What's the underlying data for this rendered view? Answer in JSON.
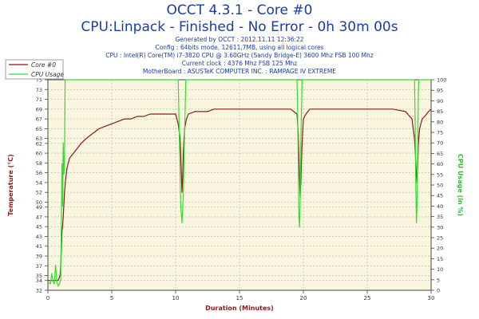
{
  "header": {
    "title": "OCCT 4.3.1 - Core #0",
    "subtitle": "CPU:Linpack - Finished - No Error - 0h 30m 00s",
    "info_lines": [
      "Generated by OCCT : 2012.11.11 12:36:22",
      "Config : 64bits mode, 12611,7MB, using all logical cores",
      "CPU : Intel(R) Core(TM) i7-3820 CPU @ 3.60GHz (Sandy Bridge-E) 3600 Mhz FSB 100 Mhz",
      "Current clock : 4376 Mhz FSB 125 Mhz",
      "MotherBoard : ASUSTeK COMPUTER INC. : RAMPAGE IV EXTREME"
    ]
  },
  "colors": {
    "temperature": "#8b1a1a",
    "cpu_usage": "#33dd33",
    "plot_bg": "#faf5df",
    "grid": "#b4b4b4",
    "left_axis_title": "#8b1a1a",
    "right_axis_title": "#33bb33",
    "x_axis_title": "#8b1a1a"
  },
  "chart_data": {
    "type": "line",
    "title": "OCCT 4.3.1 - Core #0",
    "xlabel": "Duration (Minutes)",
    "ylabel": "Temperature (°C)",
    "y2label": "CPU Usage (in %)",
    "xlim": [
      0,
      30
    ],
    "ylim": [
      32,
      75
    ],
    "y2lim": [
      0,
      100
    ],
    "x_ticks": [
      0,
      5,
      10,
      15,
      20,
      25,
      30
    ],
    "y_ticks": [
      32,
      34,
      35,
      37,
      39,
      41,
      43,
      45,
      47,
      49,
      50,
      52,
      54,
      56,
      58,
      60,
      62,
      63,
      65,
      67,
      69,
      71,
      73,
      75
    ],
    "y2_ticks": [
      0,
      5,
      10,
      15,
      20,
      25,
      30,
      35,
      40,
      45,
      50,
      55,
      60,
      65,
      70,
      75,
      80,
      85,
      90,
      95,
      100
    ],
    "grid": true,
    "legend_position": "top-left",
    "series": [
      {
        "name": "Core #0",
        "axis": "left",
        "x": [
          0,
          0.3,
          0.6,
          0.8,
          0.95,
          1.0,
          1.05,
          1.1,
          1.15,
          1.2,
          1.3,
          1.4,
          1.5,
          1.7,
          2.0,
          2.3,
          2.6,
          3.0,
          3.5,
          4.0,
          4.5,
          5.0,
          5.5,
          6.0,
          6.5,
          7.0,
          7.5,
          8.0,
          8.5,
          9.0,
          9.5,
          10.0,
          10.2,
          10.35,
          10.45,
          10.5,
          10.55,
          10.6,
          10.7,
          10.85,
          11.0,
          11.5,
          12.0,
          12.5,
          13.0,
          14.0,
          15.0,
          16.0,
          17.0,
          18.0,
          19.0,
          19.5,
          19.6,
          19.7,
          19.75,
          19.8,
          19.9,
          20.0,
          20.2,
          20.5,
          21.0,
          22.0,
          23.0,
          24.0,
          25.0,
          26.0,
          27.0,
          28.0,
          28.5,
          28.7,
          28.85,
          28.9,
          28.95,
          29.0,
          29.1,
          29.3,
          29.5,
          29.8,
          30.0
        ],
        "values": [
          34,
          34,
          34,
          34,
          35,
          37,
          40,
          44,
          45,
          47,
          52,
          55,
          57,
          59,
          60,
          61,
          62,
          63,
          64,
          65,
          65.5,
          66,
          66.5,
          67,
          67,
          67.5,
          67.5,
          68,
          68,
          68,
          68,
          68,
          66,
          63,
          56,
          52,
          55,
          60,
          65,
          67,
          68,
          68.5,
          68.5,
          68.5,
          69,
          69,
          69,
          69,
          69,
          69,
          69,
          68,
          64,
          55,
          51,
          54,
          62,
          67,
          68,
          69,
          69,
          69,
          69,
          69,
          69,
          69,
          69,
          68.5,
          67,
          63,
          56,
          54,
          57,
          62,
          65,
          67,
          67.5,
          68.5,
          69
        ]
      },
      {
        "name": "CPU Usage",
        "axis": "right",
        "x": [
          0,
          0.2,
          0.3,
          0.4,
          0.5,
          0.6,
          0.7,
          0.8,
          0.9,
          1.0,
          1.05,
          1.1,
          1.15,
          1.2,
          1.25,
          1.3,
          1.35,
          1.4,
          1.5,
          2.0,
          5.0,
          10.0,
          10.2,
          10.3,
          10.4,
          10.5,
          10.6,
          10.7,
          10.8,
          10.9,
          11.0,
          15.0,
          19.5,
          19.55,
          19.6,
          19.65,
          19.7,
          19.75,
          19.8,
          19.9,
          20.0,
          25.0,
          28.7,
          28.75,
          28.8,
          28.85,
          28.9,
          28.95,
          29.0,
          29.05,
          29.1,
          30.0
        ],
        "values": [
          4,
          3,
          8,
          4,
          3,
          12,
          4,
          2,
          3,
          5,
          30,
          60,
          40,
          70,
          55,
          62,
          100,
          100,
          100,
          100,
          100,
          100,
          100,
          70,
          40,
          32,
          45,
          75,
          100,
          100,
          100,
          100,
          100,
          85,
          60,
          35,
          30,
          42,
          70,
          100,
          100,
          100,
          100,
          80,
          50,
          32,
          40,
          65,
          95,
          100,
          100,
          100
        ]
      }
    ]
  }
}
